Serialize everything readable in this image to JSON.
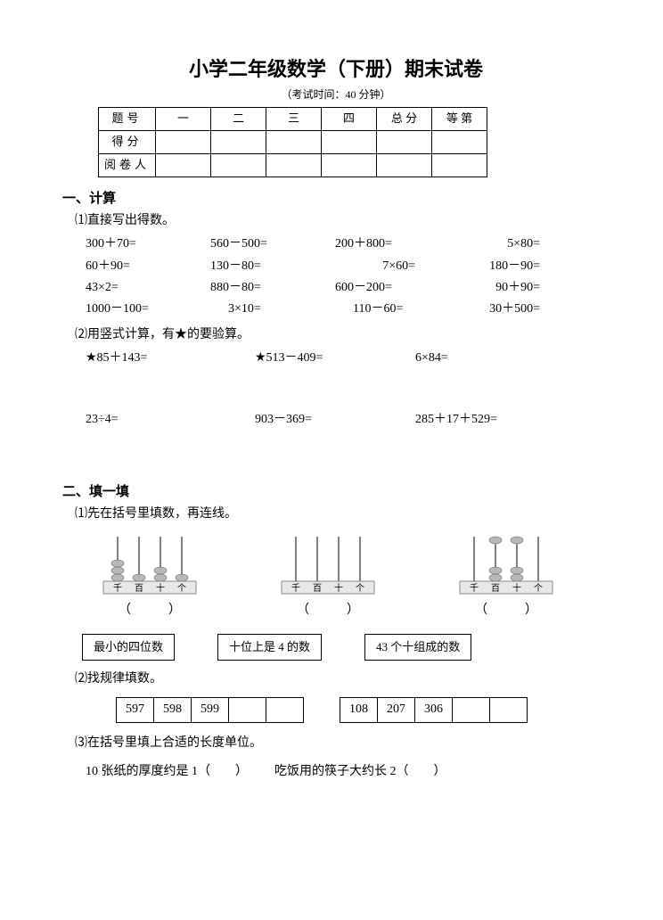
{
  "header": {
    "title": "小学二年级数学（下册）期末试卷",
    "subtitle": "（考试时间：40 分钟）",
    "tableRows": [
      "题号",
      "得分",
      "阅卷人"
    ],
    "tableCols": [
      "一",
      "二",
      "三",
      "四",
      "总 分",
      "等 第"
    ]
  },
  "section1": {
    "heading": "一、计算",
    "q1": {
      "label": "⑴直接写出得数。",
      "items": [
        "300＋70=",
        "560－500=",
        "200＋800=",
        "5×80=",
        "60＋90=",
        "130－80=",
        "7×60=",
        "180－90=",
        "43×2=",
        "880－80=",
        "600－200=",
        "90＋90=",
        "1000－100=",
        "3×10=",
        "110－60=",
        "30＋500="
      ]
    },
    "q2": {
      "label": "⑵用竖式计算，有★的要验算。",
      "row1": [
        "★85＋143=",
        "★513－409=",
        "6×84="
      ],
      "row2": [
        "23÷4=",
        "903－369=",
        "285＋17＋529="
      ]
    }
  },
  "section2": {
    "heading": "二、填一填",
    "q1": {
      "label": "⑴先在括号里填数，再连线。",
      "paren": "（　　　）",
      "boxes": [
        "最小的四位数",
        "十位上是 4 的数",
        "43 个十组成的数"
      ],
      "placeLabels": [
        "千",
        "百",
        "十",
        "个"
      ],
      "abacus": [
        {
          "beads": [
            3,
            1,
            2,
            1
          ],
          "topBeads": [
            0,
            0,
            0,
            0
          ]
        },
        {
          "beads": [
            0,
            0,
            0,
            0
          ],
          "topBeads": [
            0,
            0,
            0,
            0
          ]
        },
        {
          "beads": [
            0,
            2,
            2,
            0
          ],
          "topBeads": [
            0,
            1,
            1,
            0
          ]
        }
      ]
    },
    "q2": {
      "label": "⑵找规律填数。",
      "seq1": [
        "597",
        "598",
        "599",
        "",
        ""
      ],
      "seq2": [
        "108",
        "207",
        "306",
        "",
        ""
      ]
    },
    "q3": {
      "label": "⑶在括号里填上合适的长度单位。",
      "items": [
        "10 张纸的厚度约是 1（　　）",
        "吃饭用的筷子大约长 2（　　）"
      ]
    },
    "colors": {
      "bead": "#b8b8b8",
      "rod": "#555555",
      "barFill": "#e8e8e8",
      "barStroke": "#888888"
    }
  }
}
